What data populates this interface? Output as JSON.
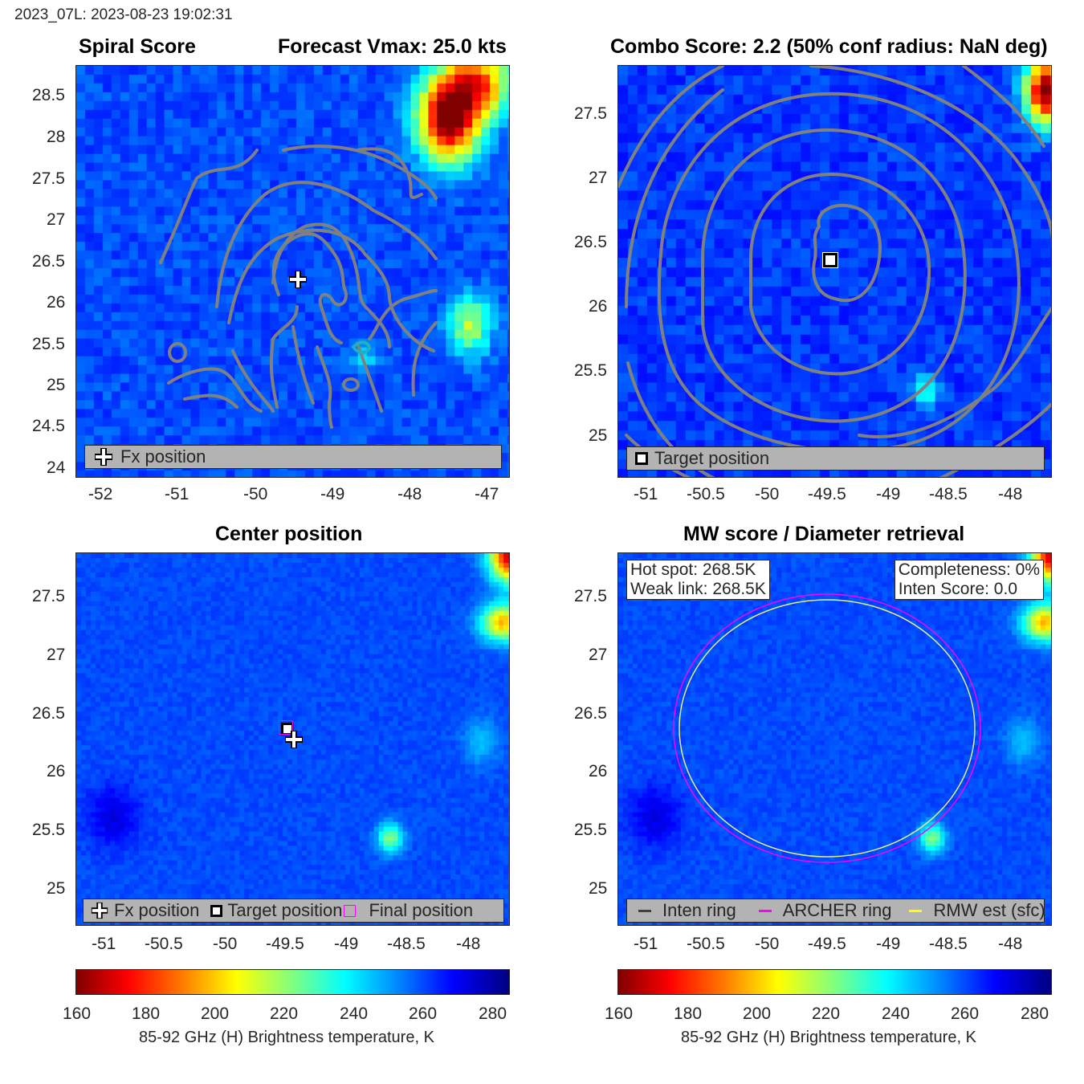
{
  "header": {
    "storm_time": "2023_07L: 2023-08-23 19:02:31"
  },
  "colors": {
    "contour": "#808080",
    "archer_ring": "#ff00ff",
    "rmw_ring": "#ffff00",
    "inten_ring": "#404040",
    "legend_bg": "#b3b3b3"
  },
  "colormap": {
    "name": "jet_reversed",
    "range": [
      160,
      280
    ]
  },
  "panels": {
    "spiral": {
      "title_left": "Spiral Score",
      "title_right": "Forecast Vmax: 25.0 kts",
      "xticks": [
        "-52",
        "-51",
        "-50",
        "-49",
        "-48",
        "-47"
      ],
      "yticks": [
        "28.5",
        "28",
        "27.5",
        "27",
        "26.5",
        "26",
        "25.5",
        "25",
        "24.5",
        "24"
      ],
      "legend": [
        {
          "icon": "cross-icon",
          "label": "Fx position"
        }
      ]
    },
    "combo": {
      "title": "Combo Score: 2.2  (50% conf radius: NaN deg)",
      "xticks": [
        "-51",
        "-50.5",
        "-50",
        "-49.5",
        "-49",
        "-48.5",
        "-48"
      ],
      "yticks": [
        "27.5",
        "27",
        "26.5",
        "26",
        "25.5",
        "25"
      ],
      "legend": [
        {
          "icon": "square-icon",
          "label": "Target position"
        }
      ]
    },
    "center": {
      "title": "Center position",
      "xticks": [
        "-51",
        "-50.5",
        "-50",
        "-49.5",
        "-49",
        "-48.5",
        "-48"
      ],
      "yticks": [
        "27.5",
        "27",
        "26.5",
        "26",
        "25.5",
        "25"
      ],
      "legend": [
        {
          "icon": "cross-icon",
          "label": "Fx position"
        },
        {
          "icon": "square-icon",
          "label": "Target position"
        },
        {
          "icon": "magenta-square-icon",
          "label": "Final position"
        }
      ]
    },
    "mw": {
      "title": "MW score / Diameter retrieval",
      "xticks": [
        "-51",
        "-50.5",
        "-50",
        "-49.5",
        "-49",
        "-48.5",
        "-48"
      ],
      "yticks": [
        "27.5",
        "27",
        "26.5",
        "26",
        "25.5",
        "25"
      ],
      "info_left": [
        "Hot spot: 268.5K",
        "Weak link: 268.5K"
      ],
      "info_right": [
        "Completeness: 0%",
        "Inten Score: 0.0"
      ],
      "legend": [
        {
          "icon": "dark-line-icon",
          "label": "Inten ring"
        },
        {
          "icon": "magenta-line-icon",
          "label": "ARCHER ring"
        },
        {
          "icon": "yellow-line-icon",
          "label": "RMW est (sfc)"
        }
      ]
    }
  },
  "colorbar": {
    "ticks": [
      "160",
      "180",
      "200",
      "220",
      "240",
      "260",
      "280"
    ],
    "label": "85-92 GHz (H) Brightness temperature, K"
  },
  "chart_data": [
    {
      "type": "heatmap",
      "title": "Spiral Score  Forecast Vmax: 25.0 kts",
      "xlim": [
        -52.3,
        -46.8
      ],
      "ylim": [
        23.9,
        28.85
      ],
      "overlays": [
        "grey spiral-score contours",
        "Fx position marker at (-49.45, 26.28)"
      ],
      "cold_features": [
        {
          "lon": -47.6,
          "lat": 28.0,
          "tb_min": 160
        },
        {
          "lon": -47.4,
          "lat": 25.7,
          "tb_min": 210
        }
      ]
    },
    {
      "type": "heatmap",
      "title": "Combo Score: 2.2  (50% conf radius: NaN deg)",
      "xlim": [
        -51.25,
        -47.67
      ],
      "ylim": [
        24.7,
        27.85
      ],
      "overlays": [
        "grey concentric combo-score contours",
        "Target position marker at (-49.51, 26.38)"
      ]
    },
    {
      "type": "heatmap",
      "title": "Center position",
      "xlim": [
        -51.25,
        -47.67
      ],
      "ylim": [
        24.7,
        27.85
      ],
      "markers": [
        {
          "name": "Fx position",
          "lon": -49.45,
          "lat": 26.28
        },
        {
          "name": "Target position",
          "lon": -49.51,
          "lat": 26.38
        },
        {
          "name": "Final position",
          "lon": -49.51,
          "lat": 26.38
        }
      ]
    },
    {
      "type": "heatmap",
      "title": "MW score / Diameter retrieval",
      "xlim": [
        -51.25,
        -47.67
      ],
      "ylim": [
        24.7,
        27.85
      ],
      "rings": [
        {
          "name": "ARCHER ring",
          "center": [
            -49.51,
            26.38
          ],
          "radius_deg": 1.28
        },
        {
          "name": "RMW est (sfc)",
          "center": [
            -49.51,
            26.38
          ],
          "radius_deg": 1.23
        }
      ],
      "values": {
        "hot_spot_K": 268.5,
        "weak_link_K": 268.5,
        "completeness_pct": 0,
        "inten_score": 0.0
      }
    }
  ]
}
